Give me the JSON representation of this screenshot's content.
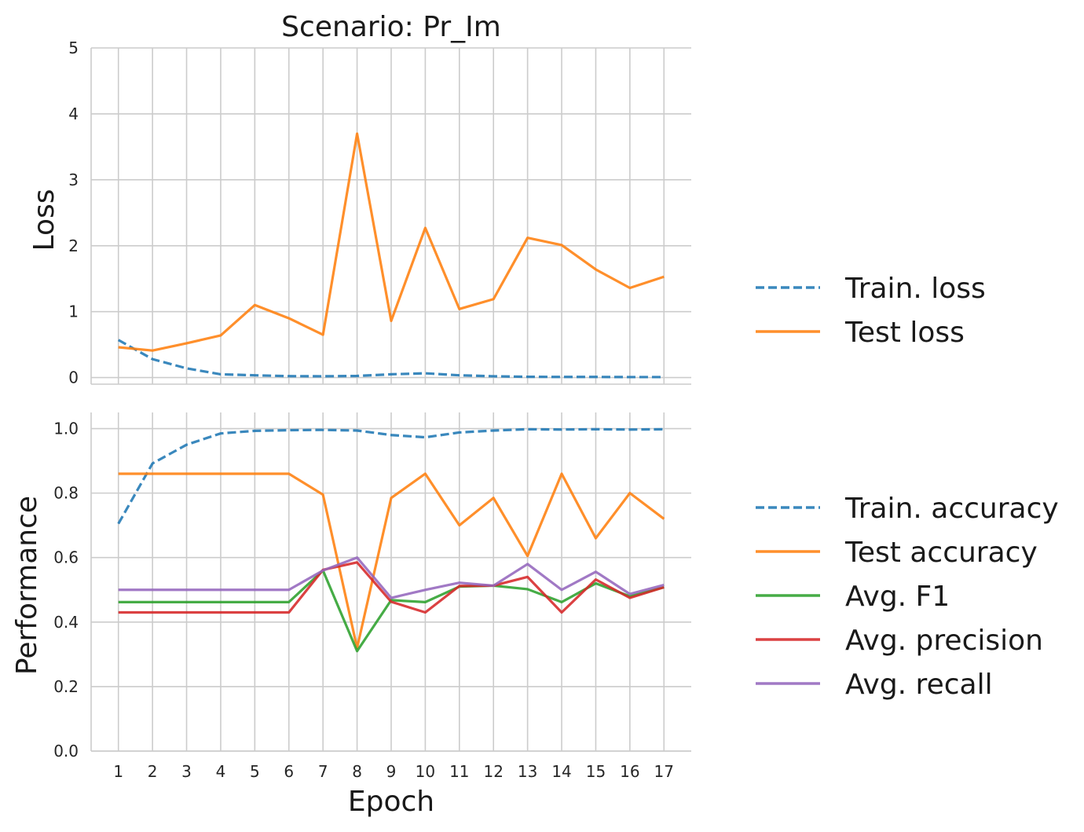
{
  "chart_data": [
    {
      "type": "line",
      "title": "Scenario: Pr_Im",
      "xlabel": "",
      "ylabel": "Loss",
      "x": [
        1,
        2,
        3,
        4,
        5,
        6,
        7,
        8,
        9,
        10,
        11,
        12,
        13,
        14,
        15,
        16,
        17
      ],
      "xlim": [
        0.2,
        17.8
      ],
      "ylim": [
        -0.1,
        5
      ],
      "yticks": [
        0,
        1,
        2,
        3,
        4,
        5
      ],
      "ytick_labels": [
        "0",
        "1",
        "2",
        "3",
        "4",
        "5"
      ],
      "grid": true,
      "legend_position": "right",
      "series": [
        {
          "name": "Train. loss",
          "color": "#1f77b4",
          "dashed": true,
          "values": [
            0.57,
            0.28,
            0.14,
            0.05,
            0.035,
            0.022,
            0.02,
            0.025,
            0.05,
            0.065,
            0.035,
            0.02,
            0.012,
            0.01,
            0.01,
            0.008,
            0.008
          ]
        },
        {
          "name": "Test loss",
          "color": "#ff7f0e",
          "dashed": false,
          "values": [
            0.46,
            0.41,
            0.52,
            0.64,
            1.1,
            0.9,
            0.65,
            3.7,
            0.86,
            2.27,
            1.04,
            1.19,
            2.12,
            2.01,
            1.64,
            1.36,
            1.53
          ]
        }
      ]
    },
    {
      "type": "line",
      "title": "",
      "xlabel": "Epoch",
      "ylabel": "Performance",
      "x": [
        1,
        2,
        3,
        4,
        5,
        6,
        7,
        8,
        9,
        10,
        11,
        12,
        13,
        14,
        15,
        16,
        17
      ],
      "xlim": [
        0.2,
        17.8
      ],
      "xtick_labels": [
        "1",
        "2",
        "3",
        "4",
        "5",
        "6",
        "7",
        "8",
        "9",
        "10",
        "11",
        "12",
        "13",
        "14",
        "15",
        "16",
        "17"
      ],
      "ylim": [
        0,
        1.05
      ],
      "yticks": [
        0,
        0.2,
        0.4,
        0.6,
        0.8,
        1.0
      ],
      "ytick_labels": [
        "0.0",
        "0.2",
        "0.4",
        "0.6",
        "0.8",
        "1.0"
      ],
      "grid": true,
      "legend_position": "right",
      "series": [
        {
          "name": "Train. accuracy",
          "color": "#1f77b4",
          "dashed": true,
          "values": [
            0.705,
            0.892,
            0.95,
            0.985,
            0.993,
            0.995,
            0.996,
            0.994,
            0.98,
            0.973,
            0.988,
            0.994,
            0.998,
            0.997,
            0.998,
            0.997,
            0.998
          ]
        },
        {
          "name": "Test accuracy",
          "color": "#ff7f0e",
          "dashed": false,
          "values": [
            0.86,
            0.86,
            0.86,
            0.86,
            0.86,
            0.86,
            0.795,
            0.32,
            0.785,
            0.86,
            0.7,
            0.785,
            0.605,
            0.86,
            0.66,
            0.8,
            0.72
          ]
        },
        {
          "name": "Avg. F1",
          "color": "#2ca02c",
          "dashed": false,
          "values": [
            0.462,
            0.462,
            0.462,
            0.462,
            0.462,
            0.462,
            0.56,
            0.31,
            0.468,
            0.462,
            0.51,
            0.513,
            0.502,
            0.462,
            0.52,
            0.48,
            0.508
          ]
        },
        {
          "name": "Avg. precision",
          "color": "#d62728",
          "dashed": false,
          "values": [
            0.43,
            0.43,
            0.43,
            0.43,
            0.43,
            0.43,
            0.562,
            0.585,
            0.463,
            0.43,
            0.512,
            0.513,
            0.54,
            0.43,
            0.532,
            0.475,
            0.508
          ]
        },
        {
          "name": "Avg. recall",
          "color": "#9467bd",
          "dashed": false,
          "values": [
            0.5,
            0.5,
            0.5,
            0.5,
            0.5,
            0.5,
            0.56,
            0.6,
            0.475,
            0.5,
            0.522,
            0.513,
            0.58,
            0.5,
            0.556,
            0.487,
            0.515
          ]
        }
      ]
    }
  ]
}
